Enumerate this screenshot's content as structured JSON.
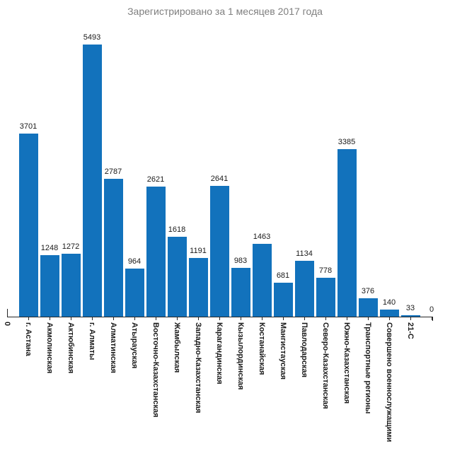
{
  "title": "Зарегистрировано за 1 месяцев 2017 года",
  "chart_data": {
    "type": "bar",
    "title": "Зарегистрировано за 1 месяцев 2017 года",
    "categories": [
      "г. Астана",
      "Акмолинская",
      "Актюбинская",
      "г. Алматы",
      "Алматинская",
      "Атырауская",
      "Восточно-Казахстанская",
      "Жамбылская",
      "Западно-Казахстанская",
      "Карагандинская",
      "Кызылординская",
      "Костанайская",
      "Мангистауская",
      "Павлодарская",
      "Северо-Казахстанская",
      "Южно-Казахстанская",
      "Транспортные регионы",
      "Совершено военнослужащими",
      "21-С",
      ""
    ],
    "values": [
      3701,
      1248,
      1272,
      5493,
      2787,
      964,
      2621,
      1618,
      1191,
      2641,
      983,
      1463,
      681,
      1134,
      778,
      3385,
      376,
      140,
      33,
      0
    ],
    "value_labels": [
      "3701",
      "1248",
      "1272",
      "5493",
      "2787",
      "964",
      "2621",
      "1618",
      "1191",
      "2641",
      "983",
      "1463",
      "681",
      "1134",
      "778",
      "3385",
      "376",
      "140",
      "33",
      "0"
    ],
    "origin_label": "0",
    "xlabel": "",
    "ylabel": "",
    "ylim": [
      0,
      5493
    ],
    "grid": false,
    "legend": false,
    "colors": {
      "bar": "#1272BC",
      "title": "#7F7F7F",
      "axis": "#262626",
      "value_label": "#1A1A1A",
      "category_label": "#1A1A1A",
      "background": "#FFFFFF"
    }
  }
}
